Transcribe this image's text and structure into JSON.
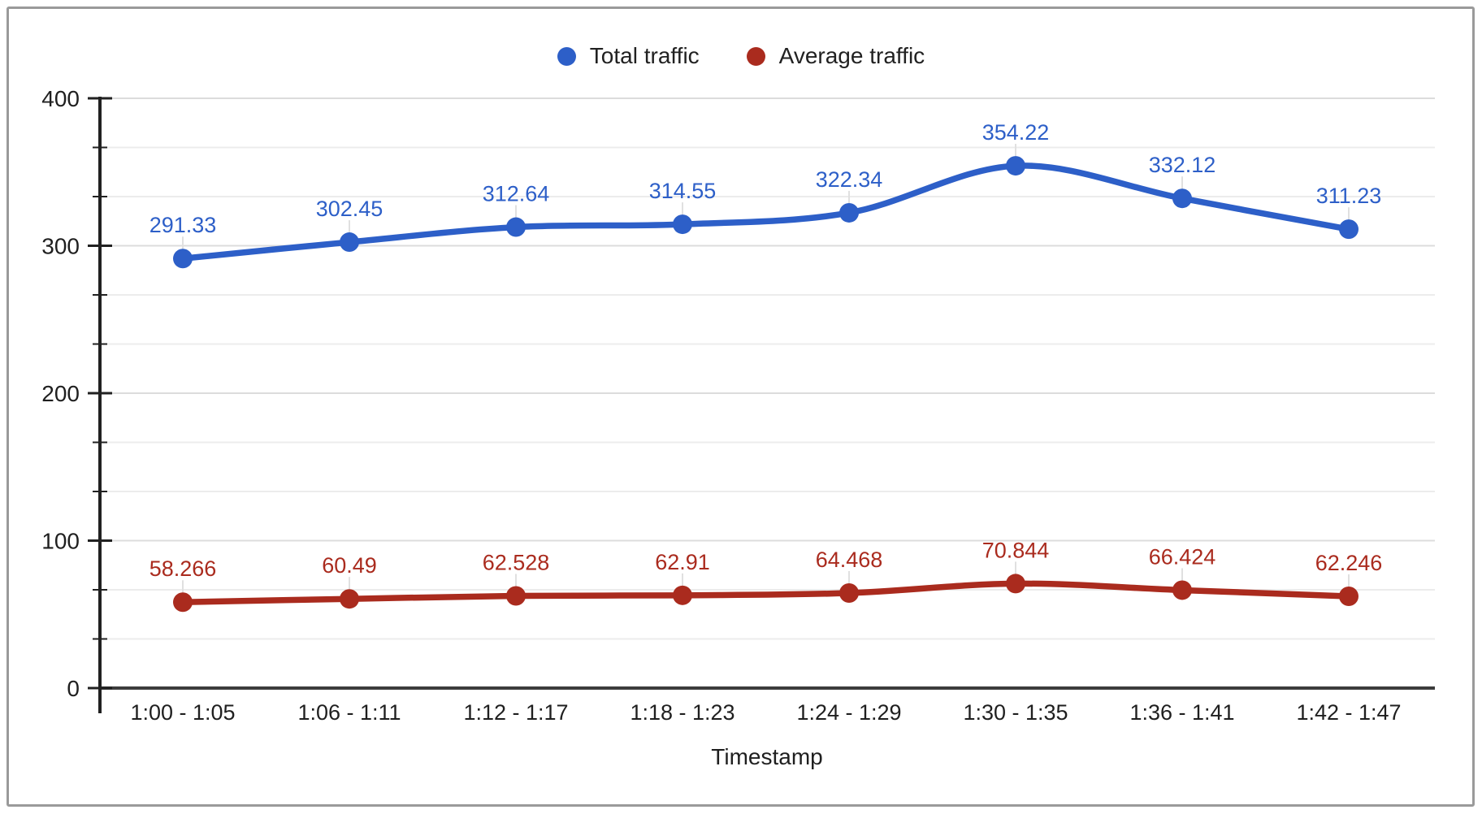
{
  "chart_data": {
    "type": "line",
    "title": "",
    "xlabel": "Timestamp",
    "ylabel": "",
    "categories": [
      "1:00 - 1:05",
      "1:06 - 1:11",
      "1:12 - 1:17",
      "1:18 - 1:23",
      "1:24 - 1:29",
      "1:30 - 1:35",
      "1:36 - 1:41",
      "1:42 - 1:47"
    ],
    "series": [
      {
        "name": "Total traffic",
        "color": "#2d5fc8",
        "values": [
          291.33,
          302.45,
          312.64,
          314.55,
          322.34,
          354.22,
          332.12,
          311.23
        ]
      },
      {
        "name": "Average traffic",
        "color": "#aa2b1e",
        "values": [
          58.266,
          60.49,
          62.528,
          62.91,
          64.468,
          70.844,
          66.424,
          62.246
        ]
      }
    ],
    "y_axis": {
      "min": 0,
      "max": 400,
      "major_step": 100,
      "minor_per_major": 3,
      "tick_labels": [
        "0",
        "100",
        "200",
        "300",
        "400"
      ]
    },
    "x_axis": {
      "title": "Timestamp"
    },
    "legend_position": "top",
    "grid": true,
    "smooth": true,
    "point_labels_visible": true,
    "colors": {
      "major_gridline": "#dcdcdc",
      "minor_gridline": "#ececec",
      "axis_line": "#212121",
      "baseline": "#3c3c3c",
      "tick_text": "#1f1f1f",
      "label_connector": "#e0e0e0",
      "frame_border": "#9a9a9a"
    }
  }
}
